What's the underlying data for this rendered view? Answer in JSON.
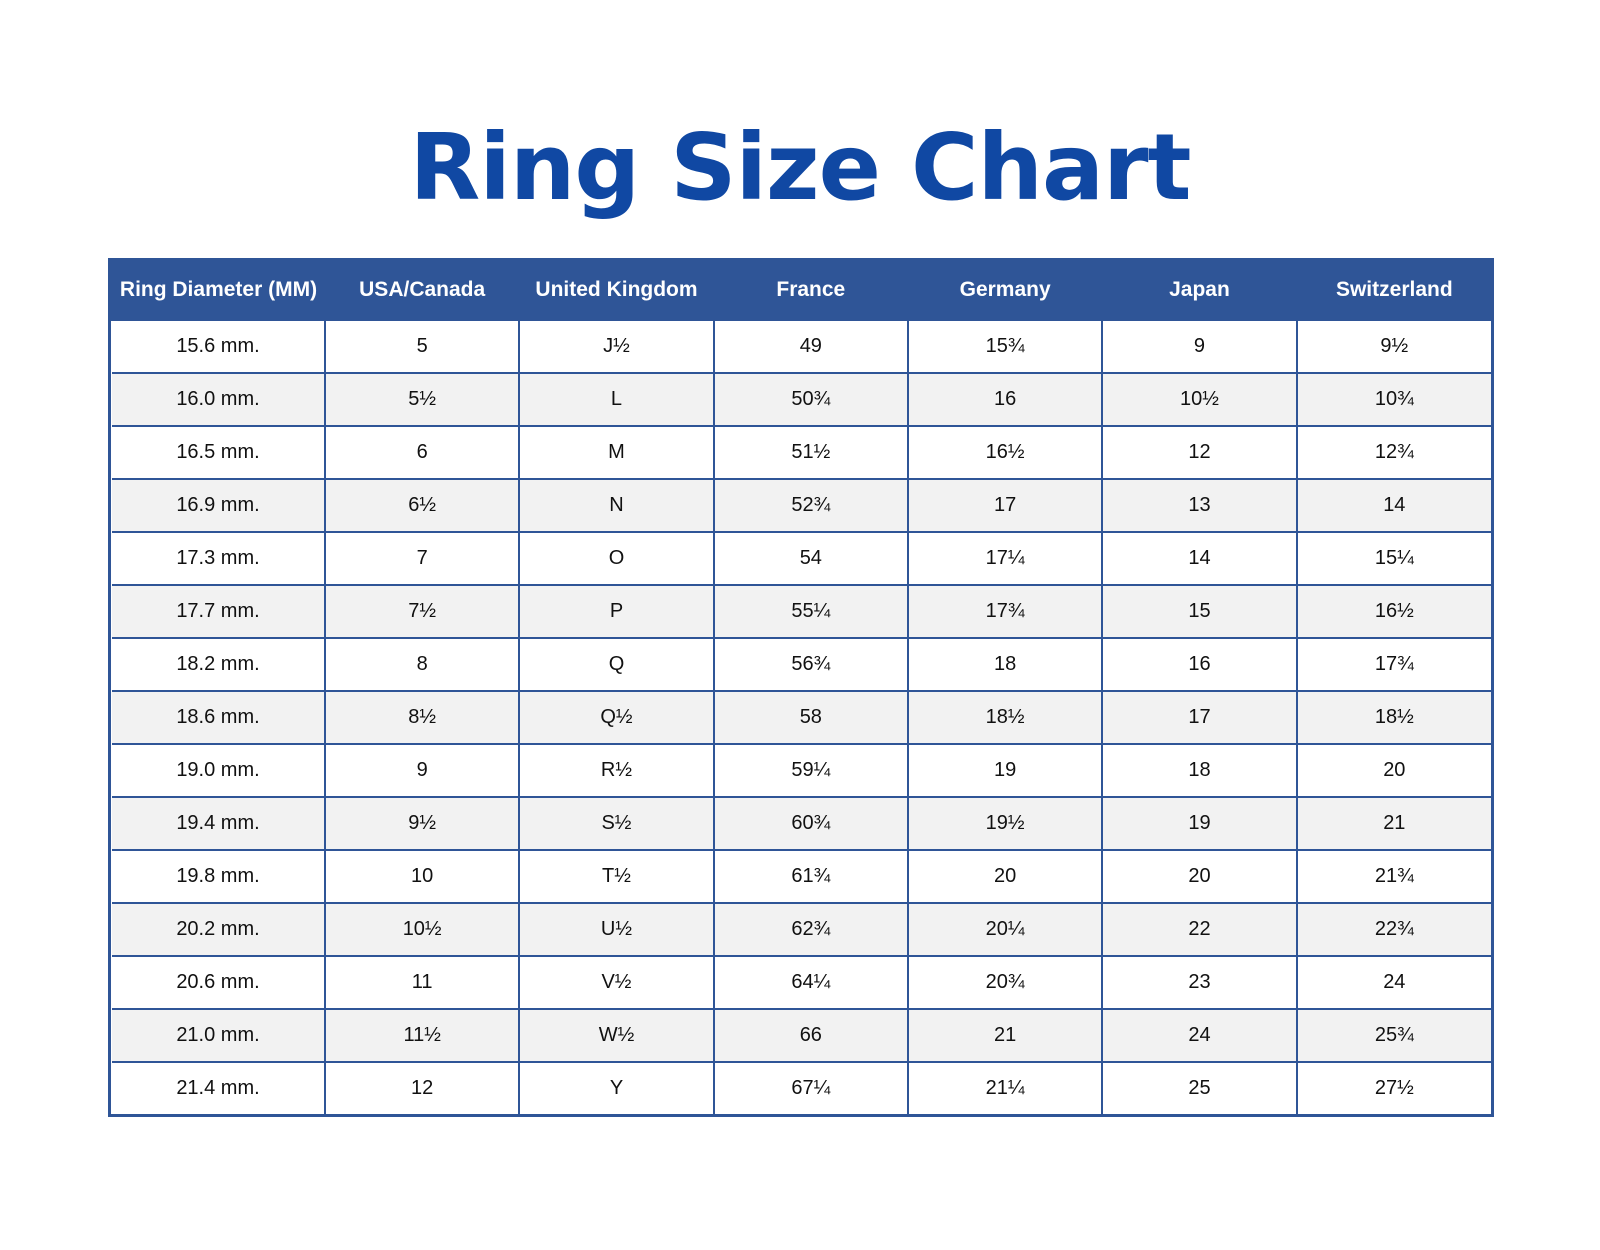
{
  "title": "Ring Size Chart",
  "accent_color": "#1048a3",
  "header_color": "#2f5597",
  "table": {
    "headers": [
      "Ring Diameter (MM)",
      "USA/Canada",
      "United Kingdom",
      "France",
      "Germany",
      "Japan",
      "Switzerland"
    ],
    "rows": [
      [
        "15.6 mm.",
        "5",
        "J½",
        "49",
        "15¾",
        "9",
        "9½"
      ],
      [
        "16.0 mm.",
        "5½",
        "L",
        "50¾",
        "16",
        "10½",
        "10¾"
      ],
      [
        "16.5 mm.",
        "6",
        "M",
        "51½",
        "16½",
        "12",
        "12¾"
      ],
      [
        "16.9 mm.",
        "6½",
        "N",
        "52¾",
        "17",
        "13",
        "14"
      ],
      [
        "17.3 mm.",
        "7",
        "O",
        "54",
        "17¼",
        "14",
        "15¼"
      ],
      [
        "17.7 mm.",
        "7½",
        "P",
        "55¼",
        "17¾",
        "15",
        "16½"
      ],
      [
        "18.2 mm.",
        "8",
        "Q",
        "56¾",
        "18",
        "16",
        "17¾"
      ],
      [
        "18.6 mm.",
        "8½",
        "Q½",
        "58",
        "18½",
        "17",
        "18½"
      ],
      [
        "19.0 mm.",
        "9",
        "R½",
        "59¼",
        "19",
        "18",
        "20"
      ],
      [
        "19.4 mm.",
        "9½",
        "S½",
        "60¾",
        "19½",
        "19",
        "21"
      ],
      [
        "19.8 mm.",
        "10",
        "T½",
        "61¾",
        "20",
        "20",
        "21¾"
      ],
      [
        "20.2 mm.",
        "10½",
        "U½",
        "62¾",
        "20¼",
        "22",
        "22¾"
      ],
      [
        "20.6 mm.",
        "11",
        "V½",
        "64¼",
        "20¾",
        "23",
        "24"
      ],
      [
        "21.0 mm.",
        "11½",
        "W½",
        "66",
        "21",
        "24",
        "25¾"
      ],
      [
        "21.4 mm.",
        "12",
        "Y",
        "67¼",
        "21¼",
        "25",
        "27½"
      ]
    ]
  }
}
